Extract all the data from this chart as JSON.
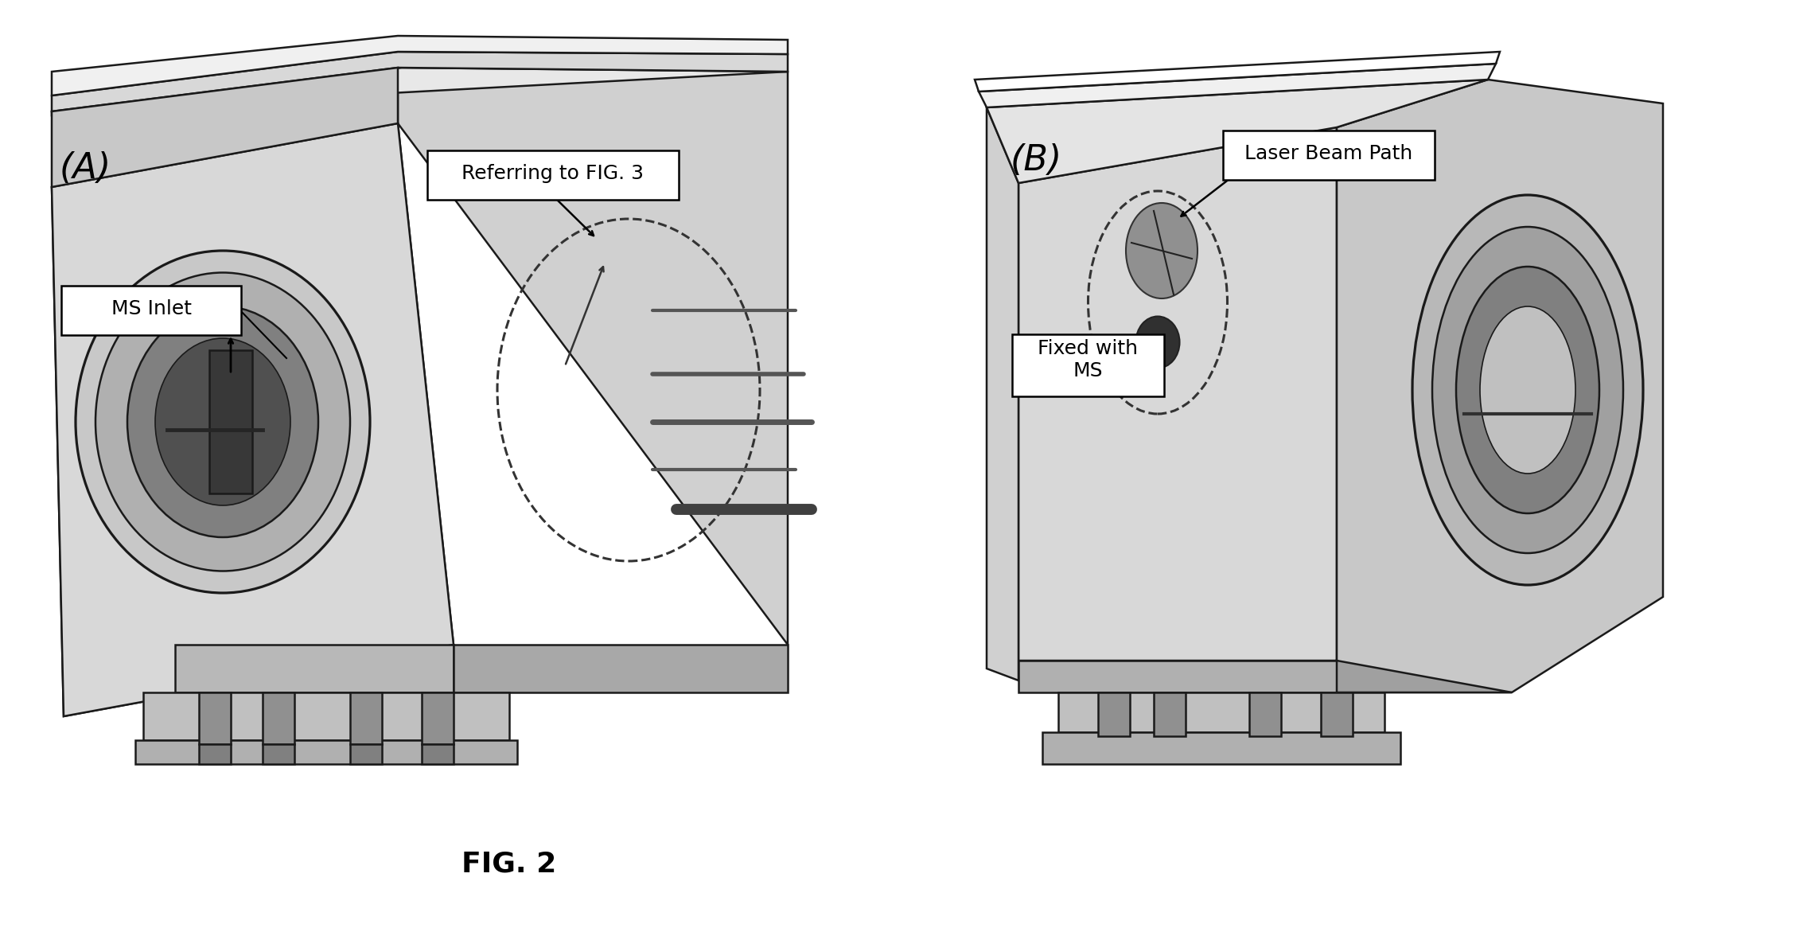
{
  "title": "FIG. 2",
  "label_A": "(A)",
  "label_B": "(B)",
  "text_ms_inlet": "MS Inlet",
  "text_referring": "Referring to FIG. 3",
  "text_laser": "Laser Beam Path",
  "text_fixed": "Fixed with\nMS",
  "bg_color": "#ffffff",
  "lc": "#1a1a1a",
  "lw": 1.8,
  "face_front": "#d4d4d4",
  "face_top": "#e8e8e8",
  "face_right": "#b8b8b8",
  "face_left": "#c8c8c8",
  "face_inner": "#c0c0c0",
  "face_dark": "#888888",
  "face_darker": "#555555",
  "face_darkest": "#333333"
}
